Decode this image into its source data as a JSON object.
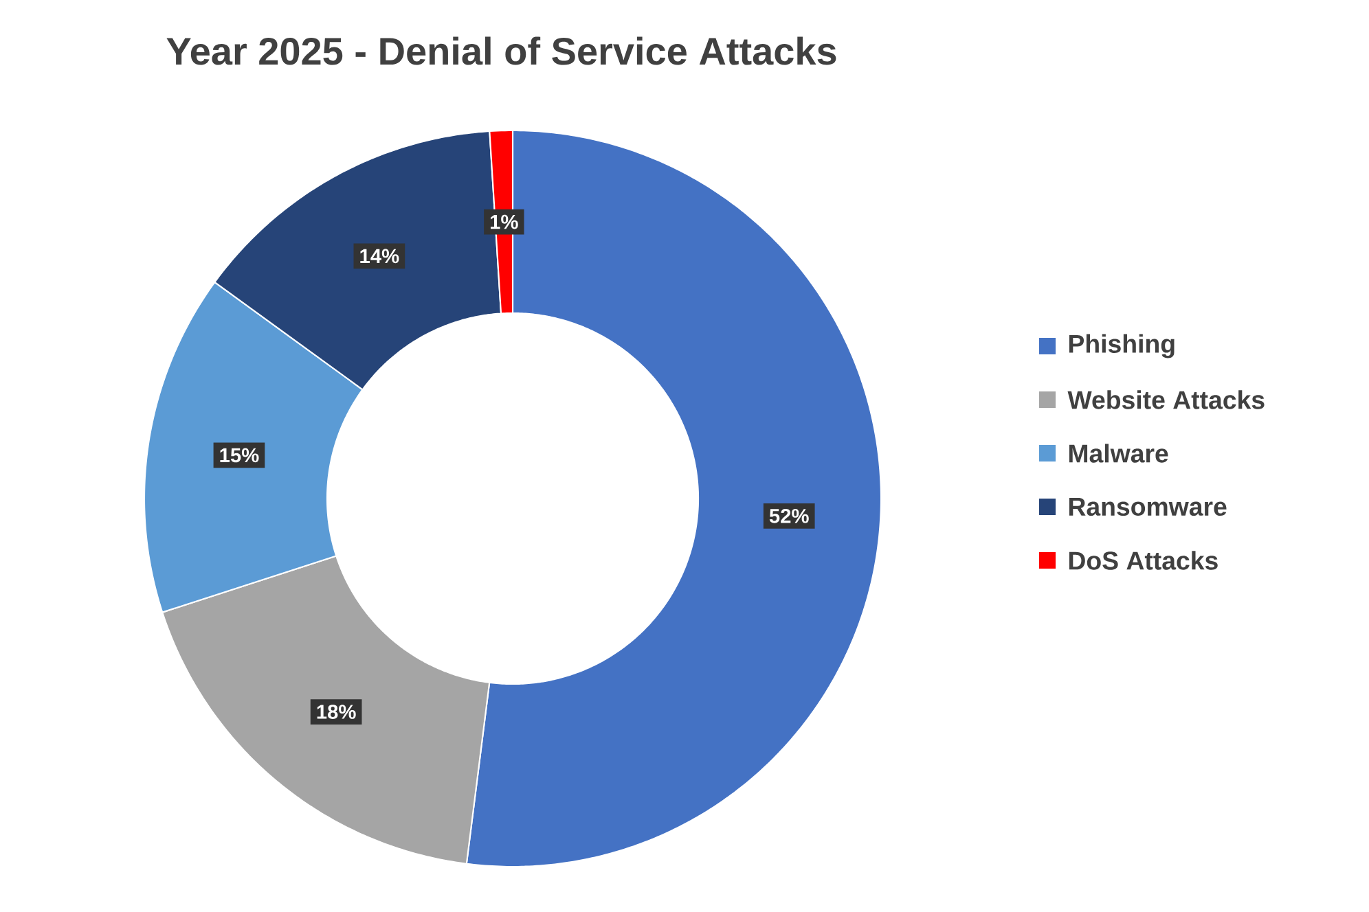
{
  "chart_data": {
    "type": "donut",
    "title": "Year 2025 - Denial of Service Attacks",
    "categories": [
      "Phishing",
      "Website Attacks",
      "Malware",
      "Ransomware",
      "DoS Attacks"
    ],
    "values": [
      52,
      18,
      15,
      14,
      1
    ],
    "colors": [
      "#4472c4",
      "#a5a5a5",
      "#5b9bd5",
      "#264478",
      "#ff0000"
    ],
    "value_labels": [
      "52%",
      "18%",
      "15%",
      "14%",
      "1%"
    ],
    "legend": "right"
  }
}
